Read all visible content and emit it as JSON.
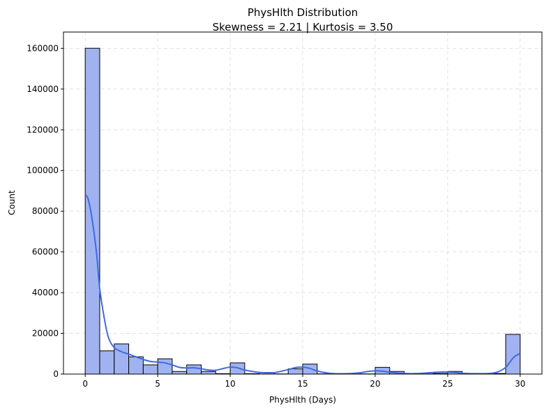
{
  "chart_data": {
    "type": "bar",
    "title": "PhysHlth Distribution",
    "subtitle": "Skewness = 2.21 | Kurtosis = 3.50",
    "xlabel": "PhysHlth (Days)",
    "ylabel": "Count",
    "xlim": [
      -1.5,
      31.5
    ],
    "ylim": [
      0,
      168000
    ],
    "x_ticks": [
      0,
      5,
      10,
      15,
      20,
      25,
      30
    ],
    "y_ticks": [
      0,
      20000,
      40000,
      60000,
      80000,
      100000,
      120000,
      140000,
      160000
    ],
    "grid": true,
    "bin_edges": [
      0,
      1,
      2,
      3,
      4,
      5,
      6,
      7,
      8,
      9,
      10,
      11,
      12,
      13,
      14,
      15,
      16,
      17,
      18,
      19,
      20,
      21,
      22,
      23,
      24,
      25,
      26,
      27,
      28,
      29,
      30
    ],
    "values": [
      160050,
      11400,
      14800,
      8500,
      4500,
      7500,
      1300,
      4500,
      1300,
      200,
      5500,
      200,
      800,
      100,
      2600,
      4900,
      100,
      200,
      100,
      100,
      3300,
      1300,
      100,
      100,
      300,
      1300,
      100,
      100,
      300,
      19500
    ],
    "kde": {
      "x": [
        0,
        0.2,
        0.5,
        0.8,
        1.0,
        1.3,
        1.6,
        2.0,
        2.5,
        3.0,
        3.5,
        4.0,
        4.5,
        5.0,
        5.5,
        6.0,
        6.5,
        7.0,
        7.5,
        8.0,
        8.5,
        9.0,
        9.5,
        10.0,
        10.5,
        11.0,
        12.0,
        13.0,
        14.0,
        14.5,
        15.0,
        15.5,
        16.0,
        17.0,
        18.0,
        19.0,
        19.5,
        20.0,
        20.5,
        21.0,
        22.0,
        23.0,
        24.0,
        24.5,
        25.0,
        25.5,
        26.0,
        27.0,
        28.0,
        28.5,
        29.0,
        29.3,
        29.6,
        30.0
      ],
      "y": [
        88000,
        86000,
        75000,
        58000,
        42000,
        28000,
        18000,
        13000,
        11000,
        9800,
        8500,
        7200,
        6200,
        5900,
        5500,
        4500,
        3300,
        3000,
        3100,
        2600,
        2000,
        1900,
        2700,
        3400,
        3100,
        2000,
        800,
        700,
        2200,
        3200,
        3400,
        2800,
        1500,
        300,
        200,
        700,
        1300,
        1600,
        1400,
        900,
        300,
        300,
        800,
        1000,
        1000,
        800,
        400,
        200,
        400,
        1200,
        3300,
        6000,
        8500,
        10200
      ]
    }
  }
}
